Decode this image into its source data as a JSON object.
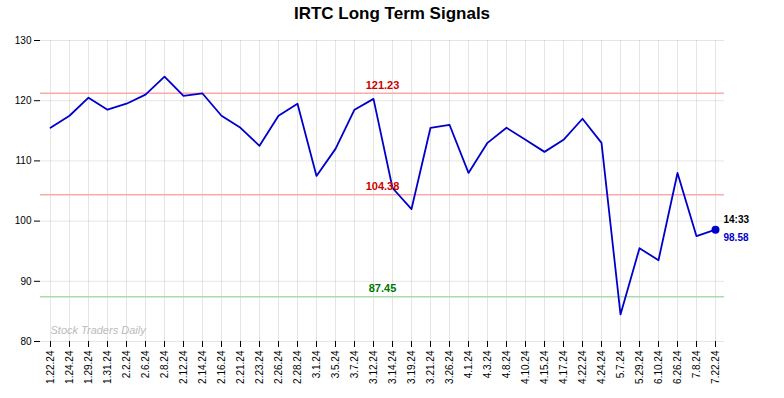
{
  "chart_data": {
    "type": "line",
    "title": "IRTC Long Term Signals",
    "categories": [
      "1.22.24",
      "1.24.24",
      "1.29.24",
      "1.31.24",
      "2.2.24",
      "2.6.24",
      "2.8.24",
      "2.12.24",
      "2.14.24",
      "2.16.24",
      "2.21.24",
      "2.23.24",
      "2.26.24",
      "2.28.24",
      "3.1.24",
      "3.5.24",
      "3.7.24",
      "3.12.24",
      "3.14.24",
      "3.19.24",
      "3.21.24",
      "3.26.24",
      "4.1.24",
      "4.3.24",
      "4.8.24",
      "4.10.24",
      "4.15.24",
      "4.17.24",
      "4.22.24",
      "4.24.24",
      "5.7.24",
      "5.29.24",
      "6.10.24",
      "6.26.24",
      "7.8.24",
      "7.22.24"
    ],
    "values": [
      115.5,
      117.5,
      120.5,
      118.5,
      119.5,
      121.0,
      124.0,
      120.8,
      121.2,
      117.5,
      115.5,
      112.5,
      117.5,
      119.5,
      107.5,
      112.0,
      118.5,
      120.3,
      105.5,
      102.0,
      115.5,
      116.0,
      108.0,
      113.0,
      115.5,
      113.5,
      111.5,
      113.5,
      117.0,
      113.0,
      84.5,
      95.5,
      93.5,
      108.0,
      97.5,
      98.58
    ],
    "color": "#0000cc",
    "hlines": [
      {
        "value": 121.23,
        "label": "121.23",
        "color": "#ffaaaa",
        "label_color": "#cc0000"
      },
      {
        "value": 104.38,
        "label": "104.38",
        "color": "#ffaaaa",
        "label_color": "#cc0000"
      },
      {
        "value": 87.45,
        "label": "87.45",
        "color": "#aaddaa",
        "label_color": "#007700"
      }
    ],
    "last_point": {
      "x": "7.22.24",
      "value": 98.58,
      "label": "14:33"
    },
    "watermark": "Stock Traders Daily",
    "ylim": [
      80,
      130
    ],
    "yticks": [
      80,
      90,
      100,
      110,
      120,
      130
    ],
    "grid": true
  }
}
